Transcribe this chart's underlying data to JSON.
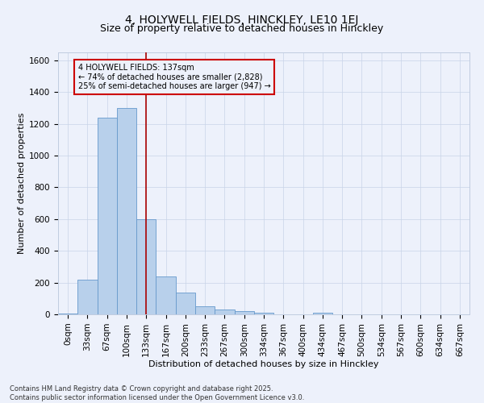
{
  "title": "4, HOLYWELL FIELDS, HINCKLEY, LE10 1EJ",
  "subtitle": "Size of property relative to detached houses in Hinckley",
  "xlabel": "Distribution of detached houses by size in Hinckley",
  "ylabel": "Number of detached properties",
  "footer_line1": "Contains HM Land Registry data © Crown copyright and database right 2025.",
  "footer_line2": "Contains public sector information licensed under the Open Government Licence v3.0.",
  "bin_labels": [
    "0sqm",
    "33sqm",
    "67sqm",
    "100sqm",
    "133sqm",
    "167sqm",
    "200sqm",
    "233sqm",
    "267sqm",
    "300sqm",
    "334sqm",
    "367sqm",
    "400sqm",
    "434sqm",
    "467sqm",
    "500sqm",
    "534sqm",
    "567sqm",
    "600sqm",
    "634sqm",
    "667sqm"
  ],
  "bar_values": [
    5,
    220,
    1240,
    1300,
    600,
    240,
    135,
    50,
    28,
    22,
    8,
    0,
    0,
    12,
    0,
    0,
    0,
    0,
    0,
    0,
    0
  ],
  "bar_color": "#b8d0eb",
  "bar_edge_color": "#6699cc",
  "background_color": "#edf1fb",
  "grid_color": "#c8d4e8",
  "property_line_x": 4.0,
  "property_line_color": "#aa0000",
  "annotation_text": "4 HOLYWELL FIELDS: 137sqm\n← 74% of detached houses are smaller (2,828)\n25% of semi-detached houses are larger (947) →",
  "annotation_box_color": "#cc0000",
  "ylim": [
    0,
    1650
  ],
  "yticks": [
    0,
    200,
    400,
    600,
    800,
    1000,
    1200,
    1400,
    1600
  ],
  "title_fontsize": 10,
  "subtitle_fontsize": 9,
  "annotation_fontsize": 7,
  "axis_label_fontsize": 8,
  "tick_fontsize": 7.5,
  "footer_fontsize": 6
}
